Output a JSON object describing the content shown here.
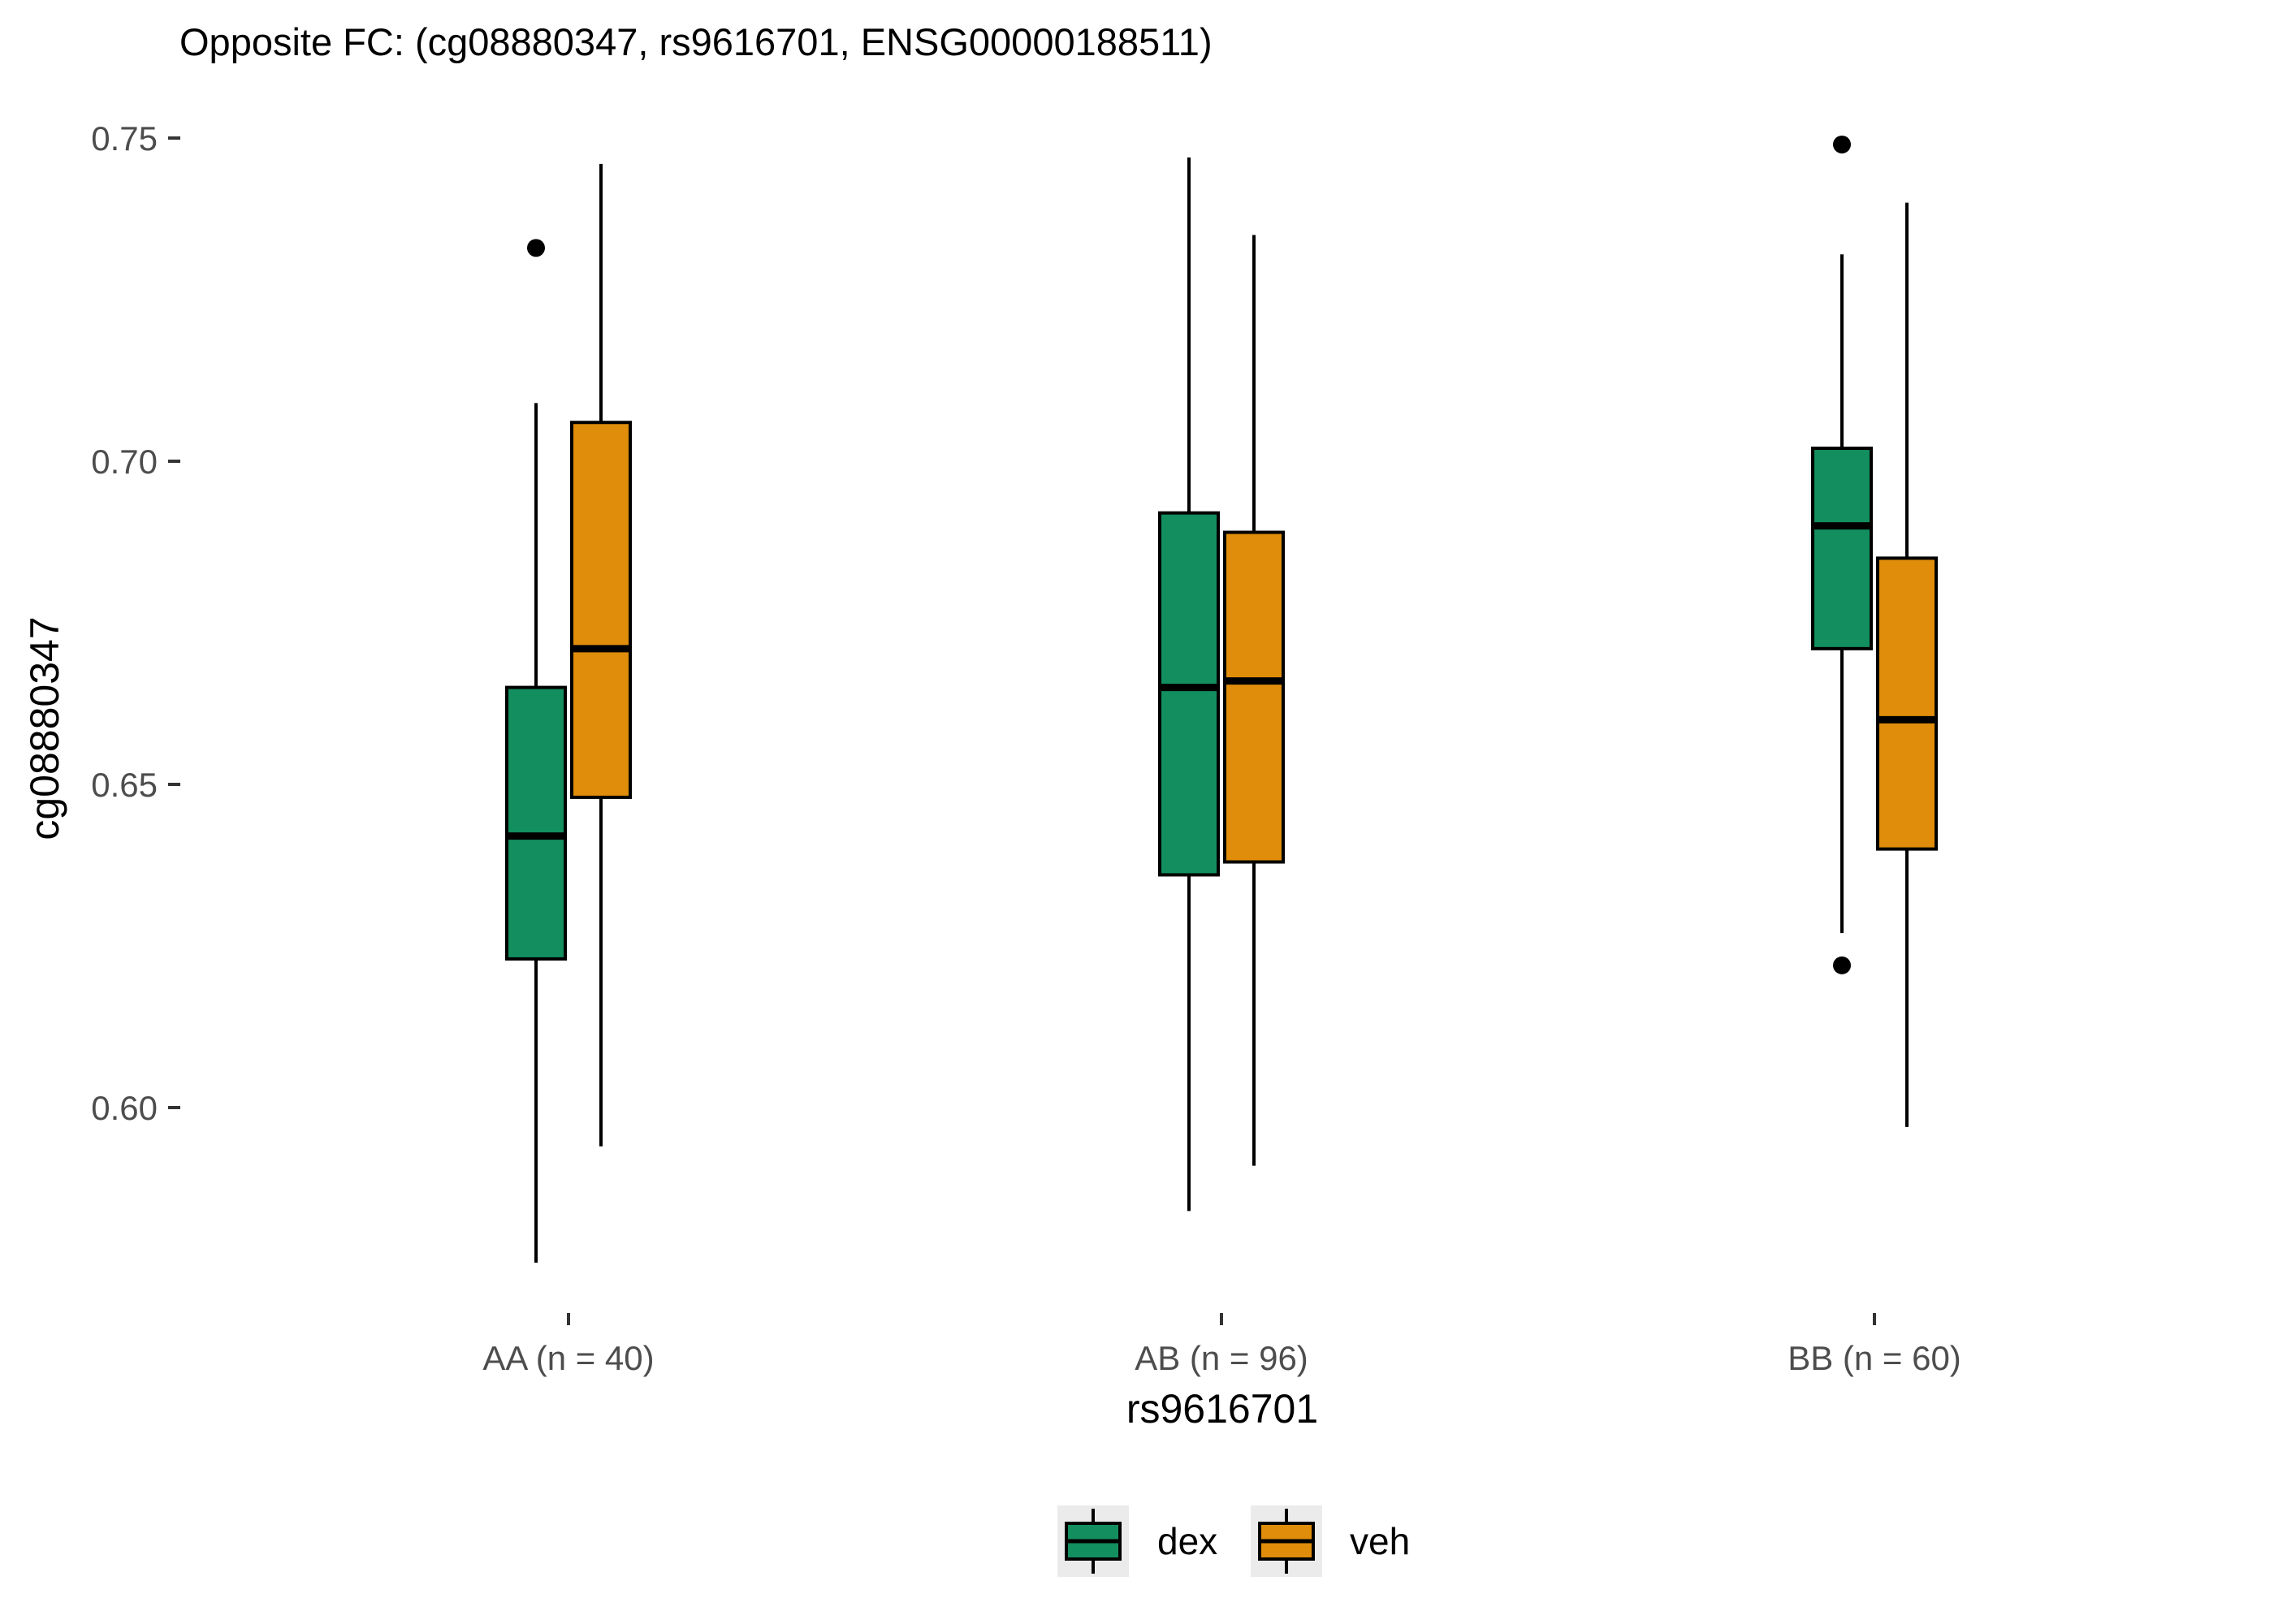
{
  "chart_data": {
    "type": "boxplot",
    "title": "Opposite FC: (cg08880347, rs9616701, ENSG00000188511)",
    "xlabel": "rs9616701",
    "ylabel": "cg08880347",
    "ylim": [
      0.5695,
      0.7575
    ],
    "yticks": [
      "0.60",
      "0.65",
      "0.70",
      "0.75"
    ],
    "ytick_values": [
      0.6,
      0.65,
      0.7,
      0.75
    ],
    "categories": [
      "AA (n = 40)",
      "AB (n = 96)",
      "BB (n = 60)"
    ],
    "grid": false,
    "legend_position": "bottom",
    "series": [
      {
        "name": "dex",
        "color": "#138f5f",
        "boxes": [
          {
            "min": 0.576,
            "q1": 0.623,
            "median": 0.642,
            "q3": 0.665,
            "max": 0.709,
            "outliers": [
              0.733
            ]
          },
          {
            "min": 0.584,
            "q1": 0.636,
            "median": 0.665,
            "q3": 0.692,
            "max": 0.747,
            "outliers": []
          },
          {
            "min": 0.627,
            "q1": 0.671,
            "median": 0.69,
            "q3": 0.702,
            "max": 0.732,
            "outliers": [
              0.749,
              0.622
            ]
          }
        ]
      },
      {
        "name": "veh",
        "color": "#df8d0a",
        "boxes": [
          {
            "min": 0.594,
            "q1": 0.648,
            "median": 0.671,
            "q3": 0.706,
            "max": 0.746,
            "outliers": []
          },
          {
            "min": 0.591,
            "q1": 0.638,
            "median": 0.666,
            "q3": 0.689,
            "max": 0.735,
            "outliers": []
          },
          {
            "min": 0.597,
            "q1": 0.64,
            "median": 0.66,
            "q3": 0.685,
            "max": 0.74,
            "outliers": []
          }
        ]
      }
    ]
  }
}
